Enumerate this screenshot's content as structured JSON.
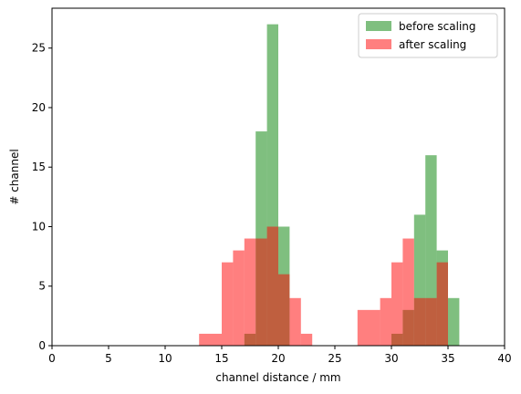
{
  "chart_data": {
    "type": "bar",
    "subtype": "histogram-overlay",
    "title": "",
    "xlabel": "channel distance / mm",
    "ylabel": "# channel",
    "xlim": [
      0,
      40
    ],
    "ylim": [
      0,
      28.35
    ],
    "xticks": [
      0,
      5,
      10,
      15,
      20,
      25,
      30,
      35,
      40
    ],
    "yticks": [
      0,
      5,
      10,
      15,
      20,
      25
    ],
    "grid": false,
    "legend_position": "top-right",
    "series": [
      {
        "name": "before scaling",
        "color": "#008000",
        "opacity": 0.5,
        "bins": [
          {
            "x0": 17,
            "x1": 18,
            "value": 1
          },
          {
            "x0": 18,
            "x1": 19,
            "value": 18
          },
          {
            "x0": 19,
            "x1": 20,
            "value": 27
          },
          {
            "x0": 20,
            "x1": 21,
            "value": 10
          },
          {
            "x0": 30,
            "x1": 31,
            "value": 1
          },
          {
            "x0": 31,
            "x1": 32,
            "value": 3
          },
          {
            "x0": 32,
            "x1": 33,
            "value": 11
          },
          {
            "x0": 33,
            "x1": 34,
            "value": 16
          },
          {
            "x0": 34,
            "x1": 35,
            "value": 8
          },
          {
            "x0": 35,
            "x1": 36,
            "value": 4
          }
        ]
      },
      {
        "name": "after scaling",
        "color": "#ff0000",
        "opacity": 0.5,
        "bins": [
          {
            "x0": 13,
            "x1": 15,
            "value": 1
          },
          {
            "x0": 15,
            "x1": 16,
            "value": 7
          },
          {
            "x0": 16,
            "x1": 17,
            "value": 8
          },
          {
            "x0": 17,
            "x1": 18,
            "value": 9
          },
          {
            "x0": 18,
            "x1": 19,
            "value": 9
          },
          {
            "x0": 19,
            "x1": 20,
            "value": 10
          },
          {
            "x0": 20,
            "x1": 21,
            "value": 6
          },
          {
            "x0": 21,
            "x1": 22,
            "value": 4
          },
          {
            "x0": 22,
            "x1": 23,
            "value": 1
          },
          {
            "x0": 27,
            "x1": 29,
            "value": 3
          },
          {
            "x0": 29,
            "x1": 30,
            "value": 4
          },
          {
            "x0": 30,
            "x1": 31,
            "value": 7
          },
          {
            "x0": 31,
            "x1": 32,
            "value": 9
          },
          {
            "x0": 32,
            "x1": 33,
            "value": 4
          },
          {
            "x0": 33,
            "x1": 34,
            "value": 4
          },
          {
            "x0": 34,
            "x1": 35,
            "value": 7
          }
        ]
      }
    ]
  }
}
